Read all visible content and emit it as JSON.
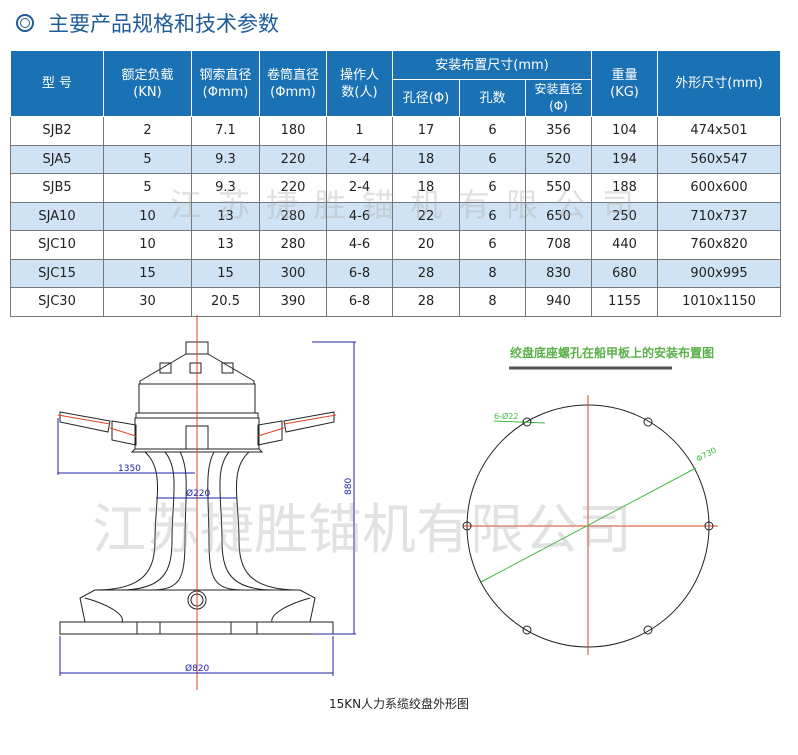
{
  "title": "主要产品规格和技术参数",
  "table": {
    "headers": {
      "model": "型 号",
      "load": "额定负载",
      "load_unit": "(KN)",
      "rope": "钢索直径",
      "rope_unit": "(Φmm)",
      "drum": "卷筒直径",
      "drum_unit": "(Φmm)",
      "ops": "操作人",
      "ops_unit": "数(人)",
      "install": "安装布置尺寸(mm)",
      "hole_d": "孔径(Φ)",
      "hole_n": "孔数",
      "install_d": "安装直径(Φ)",
      "weight": "重量",
      "weight_unit": "(KG)",
      "size": "外形尺寸(mm)"
    },
    "rows": [
      [
        "SJB2",
        "2",
        "7.1",
        "180",
        "1",
        "17",
        "6",
        "356",
        "104",
        "474x501"
      ],
      [
        "SJA5",
        "5",
        "9.3",
        "220",
        "2-4",
        "18",
        "6",
        "520",
        "194",
        "560x547"
      ],
      [
        "SJB5",
        "5",
        "9.3",
        "220",
        "2-4",
        "18",
        "6",
        "550",
        "188",
        "600x600"
      ],
      [
        "SJA10",
        "10",
        "13",
        "280",
        "4-6",
        "22",
        "6",
        "650",
        "250",
        "710x737"
      ],
      [
        "SJC10",
        "10",
        "13",
        "280",
        "4-6",
        "20",
        "6",
        "708",
        "440",
        "760x820"
      ],
      [
        "SJC15",
        "15",
        "15",
        "300",
        "6-8",
        "28",
        "8",
        "830",
        "680",
        "900x995"
      ],
      [
        "SJC30",
        "30",
        "20.5",
        "390",
        "6-8",
        "28",
        "8",
        "940",
        "1155",
        "1010x1150"
      ]
    ]
  },
  "watermark": "江苏捷胜锚机有限公司",
  "drawing": {
    "dim_1350": "1350",
    "dim_220": "Ø220",
    "dim_880": "880",
    "dim_820": "Ø820",
    "caption": "15KN人力系缆绞盘外形图"
  },
  "layout_drawing": {
    "title": "绞盘底座螺孔在船甲板上的安装布置图",
    "holes": "6-Ø22",
    "diameter": "Φ730"
  },
  "colors": {
    "header": "#1a72b5",
    "alt_row": "#cfe3f4",
    "title": "#1f5c98"
  }
}
